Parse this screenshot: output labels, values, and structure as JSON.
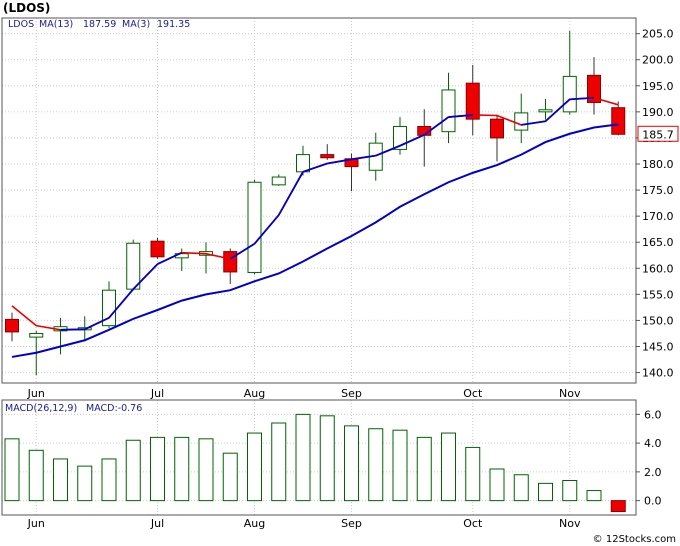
{
  "title": "(LDOS)",
  "copyright": "© 12Stocks.com",
  "colors": {
    "up_body": "#ffffff",
    "up_border": "#006400",
    "down_body": "#ee0000",
    "ma13": "#0000cc",
    "ma3": "#ee0000",
    "macd_bar": "#006400",
    "macd_neg": "#ee0000",
    "grid": "#cccccc"
  },
  "chart_data": [
    {
      "type": "candlestick",
      "legend": {
        "symbol": "LDOS",
        "ma13_label": "MA(13)",
        "ma13_value": "187.59",
        "ma3_label": "MA(3)",
        "ma3_value": "191.35"
      },
      "last_price": "185.7",
      "ylim": [
        138,
        208
      ],
      "yticks": [
        "205.0",
        "200.0",
        "195.0",
        "190.0",
        "185.0",
        "180.0",
        "175.0",
        "170.0",
        "165.0",
        "160.0",
        "155.0",
        "150.0",
        "145.0",
        "140.0"
      ],
      "month_labels": [
        {
          "label": "Jun",
          "index": 1
        },
        {
          "label": "Jul",
          "index": 6
        },
        {
          "label": "Aug",
          "index": 10
        },
        {
          "label": "Sep",
          "index": 14
        },
        {
          "label": "Oct",
          "index": 19
        },
        {
          "label": "Nov",
          "index": 23
        }
      ],
      "candles": [
        {
          "o": 150.2,
          "h": 151.5,
          "l": 146.0,
          "c": 147.8
        },
        {
          "o": 146.8,
          "h": 148.0,
          "l": 139.5,
          "c": 147.5
        },
        {
          "o": 148.0,
          "h": 150.5,
          "l": 143.5,
          "c": 148.8
        },
        {
          "o": 148.2,
          "h": 150.8,
          "l": 146.0,
          "c": 148.6
        },
        {
          "o": 149.0,
          "h": 157.5,
          "l": 148.5,
          "c": 155.8
        },
        {
          "o": 156.0,
          "h": 165.5,
          "l": 155.8,
          "c": 164.8
        },
        {
          "o": 165.2,
          "h": 165.8,
          "l": 161.8,
          "c": 162.2
        },
        {
          "o": 162.0,
          "h": 163.8,
          "l": 159.5,
          "c": 162.8
        },
        {
          "o": 162.5,
          "h": 165.0,
          "l": 159.0,
          "c": 163.2
        },
        {
          "o": 163.2,
          "h": 163.8,
          "l": 157.0,
          "c": 159.3
        },
        {
          "o": 159.2,
          "h": 177.0,
          "l": 158.8,
          "c": 176.5
        },
        {
          "o": 176.0,
          "h": 178.0,
          "l": 175.8,
          "c": 177.5
        },
        {
          "o": 178.5,
          "h": 183.5,
          "l": 177.8,
          "c": 181.8
        },
        {
          "o": 181.8,
          "h": 183.8,
          "l": 180.8,
          "c": 181.2
        },
        {
          "o": 181.0,
          "h": 182.0,
          "l": 174.8,
          "c": 179.5
        },
        {
          "o": 178.8,
          "h": 186.0,
          "l": 176.8,
          "c": 184.0
        },
        {
          "o": 182.8,
          "h": 189.0,
          "l": 181.8,
          "c": 187.2
        },
        {
          "o": 187.2,
          "h": 190.5,
          "l": 179.5,
          "c": 185.5
        },
        {
          "o": 186.2,
          "h": 197.5,
          "l": 184.0,
          "c": 194.2
        },
        {
          "o": 195.5,
          "h": 199.0,
          "l": 185.5,
          "c": 188.6
        },
        {
          "o": 188.6,
          "h": 189.5,
          "l": 180.5,
          "c": 185.0
        },
        {
          "o": 186.5,
          "h": 193.5,
          "l": 184.0,
          "c": 189.8
        },
        {
          "o": 190.0,
          "h": 192.5,
          "l": 188.5,
          "c": 190.4
        },
        {
          "o": 190.0,
          "h": 205.5,
          "l": 189.5,
          "c": 196.8
        },
        {
          "o": 197.0,
          "h": 200.5,
          "l": 189.5,
          "c": 191.8
        },
        {
          "o": 190.8,
          "h": 192.0,
          "l": 185.5,
          "c": 185.7
        }
      ],
      "ma13": [
        143.0,
        143.8,
        145.0,
        146.2,
        148.2,
        150.3,
        152.0,
        153.8,
        155.0,
        155.8,
        157.5,
        159.0,
        161.3,
        163.8,
        166.2,
        168.8,
        171.8,
        174.2,
        176.5,
        178.3,
        179.8,
        181.8,
        184.2,
        185.8,
        187.0,
        187.59
      ],
      "ma3": [
        152.8,
        149.0,
        148.2,
        148.3,
        150.5,
        156.0,
        160.8,
        163.0,
        162.8,
        161.8,
        164.7,
        170.2,
        178.5,
        180.1,
        180.9,
        181.6,
        183.5,
        185.6,
        189.0,
        189.4,
        189.3,
        187.5,
        188.2,
        192.4,
        192.7,
        191.35
      ]
    },
    {
      "type": "bar",
      "legend": {
        "label": "MACD(26,12,9)",
        "value_label": "MACD:-0.76"
      },
      "ylim": [
        -1.0,
        7.0
      ],
      "yticks": [
        "6.0",
        "4.0",
        "2.0",
        "0.0"
      ],
      "values": [
        4.3,
        3.5,
        2.9,
        2.4,
        2.9,
        4.2,
        4.4,
        4.4,
        4.3,
        3.3,
        4.7,
        5.4,
        6.0,
        5.9,
        5.2,
        5.0,
        4.9,
        4.4,
        4.7,
        3.7,
        2.2,
        1.8,
        1.2,
        1.4,
        0.7,
        -0.76
      ]
    }
  ]
}
